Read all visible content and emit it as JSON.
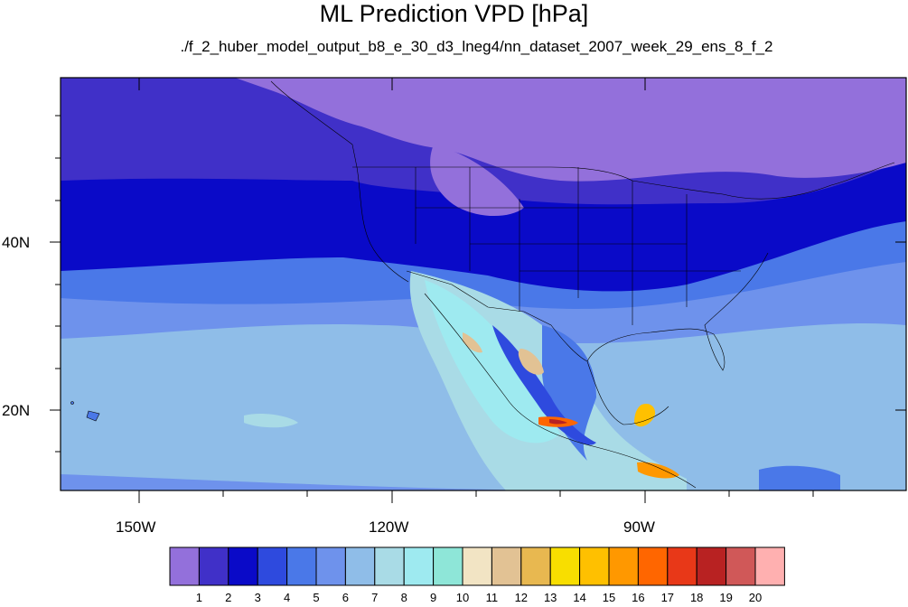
{
  "title": "ML Prediction VPD [hPa]",
  "subtitle": "./f_2_huber_model_output_b8_e_30_d3_lneg4/nn_dataset_2007_week_29_ens_8_f_2",
  "axes": {
    "x_ticks": [
      "150W",
      "120W",
      "90W"
    ],
    "y_ticks": [
      "40N",
      "20N"
    ]
  },
  "colorbar": {
    "labels": [
      "1",
      "2",
      "3",
      "4",
      "5",
      "6",
      "7",
      "8",
      "9",
      "10",
      "11",
      "12",
      "13",
      "14",
      "15",
      "16",
      "17",
      "18",
      "19",
      "20"
    ],
    "colors": [
      "#9370db",
      "#4030c8",
      "#0a0ac8",
      "#2e4ade",
      "#4a78e8",
      "#6e92ec",
      "#8fbde8",
      "#a9dbe6",
      "#9eeaf0",
      "#8ee6d8",
      "#f2e4c4",
      "#e2c294",
      "#e8b850",
      "#f8de00",
      "#ffc000",
      "#ff9800",
      "#ff6600",
      "#e83818",
      "#b82222",
      "#d05858",
      "#ffb0b0"
    ]
  }
}
